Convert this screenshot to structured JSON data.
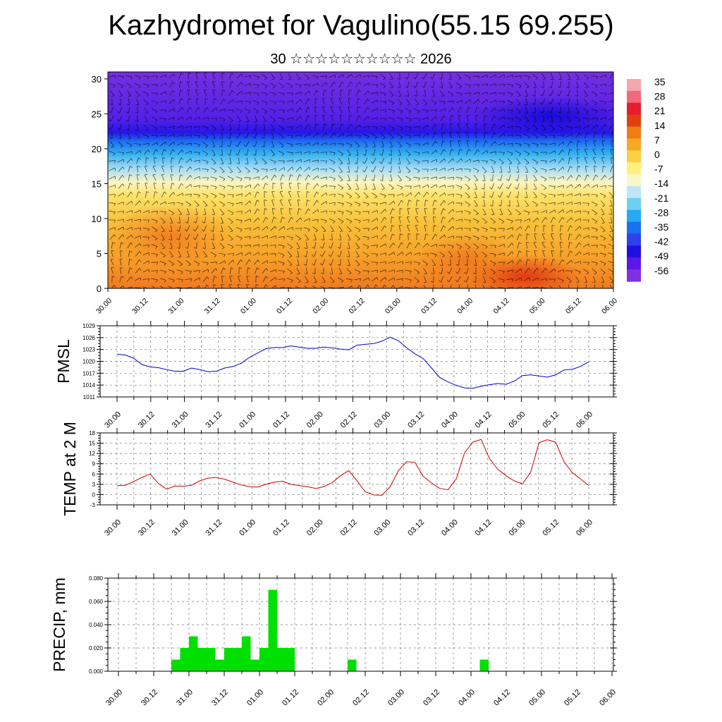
{
  "title": "Kazhydromet for Vagulino(55.15 69.255)",
  "subtitle": "30 ☆☆☆☆☆☆☆☆☆☆ 2026",
  "colors": {
    "pmsl_line": "#0000cc",
    "temp_line": "#cc0000",
    "precip_bar": "#00e000",
    "colorbar": [
      "#f2a8ae",
      "#f06a7a",
      "#e51e2e",
      "#e04010",
      "#ef7d14",
      "#f7a825",
      "#fccf45",
      "#fff080",
      "#f7f7c8",
      "#bfe6f7",
      "#6fcff2",
      "#26aaf2",
      "#1a70ee",
      "#3040e8",
      "#2010e0",
      "#5a18e8",
      "#8030e0"
    ]
  },
  "chart_data": [
    {
      "type": "heatmap",
      "title": "",
      "xlabel": "",
      "ylabel": "",
      "x_ticks": [
        "30.00",
        "30.12",
        "31.00",
        "31.12",
        "01.00",
        "01.12",
        "02.00",
        "02.12",
        "03.00",
        "03.12",
        "04.00",
        "04.12",
        "05.00",
        "05.12",
        "06.00"
      ],
      "y_ticks": [
        0,
        5,
        10,
        15,
        20,
        25,
        30
      ],
      "ylim": [
        0,
        31
      ],
      "colorbar_labels": [
        "35",
        "28",
        "21",
        "14",
        "7",
        "0",
        "-7",
        "-14",
        "-21",
        "-28",
        "-35",
        "-42",
        "-49",
        "-56"
      ],
      "overlay": "wind barbs"
    },
    {
      "type": "line",
      "ylabel": "PMSL",
      "x_ticks": [
        "30.00",
        "30.12",
        "31.00",
        "31.12",
        "01.00",
        "01.12",
        "02.00",
        "02.12",
        "03.00",
        "03.12",
        "04.00",
        "04.12",
        "05.00",
        "05.12",
        "06.00"
      ],
      "y_ticks": [
        "1011",
        "1014",
        "1017",
        "1020",
        "1023",
        "1026",
        "1029"
      ],
      "ylim": [
        1011,
        1029
      ],
      "grid": true,
      "series": [
        {
          "values": [
            1021.8,
            1021.6,
            1020.8,
            1019.2,
            1018.6,
            1018.4,
            1017.9,
            1017.5,
            1017.5,
            1018.3,
            1017.9,
            1017.4,
            1017.5,
            1018.3,
            1018.7,
            1019.5,
            1021.0,
            1022.1,
            1023.2,
            1023.5,
            1023.5,
            1023.9,
            1023.6,
            1023.3,
            1023.3,
            1023.6,
            1023.4,
            1023.1,
            1022.9,
            1024.1,
            1024.3,
            1024.5,
            1025.1,
            1026.1,
            1025.2,
            1023.4,
            1021.9,
            1020.7,
            1018.3,
            1015.9,
            1014.8,
            1013.9,
            1013.3,
            1013.2,
            1013.7,
            1014.1,
            1014.4,
            1014.2,
            1015.0,
            1016.4,
            1016.6,
            1016.3,
            1016.0,
            1016.6,
            1017.8,
            1018.0,
            1018.7,
            1019.9
          ]
        }
      ]
    },
    {
      "type": "line",
      "ylabel": "TEMP at 2 M",
      "x_ticks": [
        "30.00",
        "30.12",
        "31.00",
        "31.12",
        "01.00",
        "01.12",
        "02.00",
        "02.12",
        "03.00",
        "03.12",
        "04.00",
        "04.12",
        "05.00",
        "05.12",
        "06.00"
      ],
      "y_ticks": [
        "-3",
        "0",
        "3",
        "6",
        "9",
        "12",
        "15",
        "18"
      ],
      "ylim": [
        -3,
        18
      ],
      "grid": true,
      "series": [
        {
          "values": [
            2.6,
            2.7,
            3.8,
            5.0,
            6.0,
            3.2,
            1.6,
            2.5,
            2.4,
            2.7,
            4.0,
            4.8,
            5.0,
            4.5,
            3.6,
            2.8,
            2.3,
            2.2,
            3.0,
            3.6,
            3.9,
            3.0,
            2.6,
            2.3,
            1.8,
            2.3,
            3.5,
            5.5,
            7.0,
            4.0,
            0.8,
            -0.1,
            -0.2,
            2.3,
            7.0,
            9.6,
            9.4,
            5.3,
            3.4,
            1.8,
            1.4,
            4.6,
            12.2,
            15.3,
            16.1,
            10.5,
            7.4,
            5.5,
            4.0,
            3.1,
            6.6,
            15.2,
            16.0,
            15.3,
            9.6,
            6.4,
            4.6,
            2.6
          ]
        }
      ]
    },
    {
      "type": "bar",
      "ylabel": "PRECIP, mm",
      "x_ticks": [
        "30.00",
        "30.12",
        "31.00",
        "31.12",
        "01.00",
        "01.12",
        "02.00",
        "02.12",
        "03.00",
        "03.12",
        "04.00",
        "04.12",
        "05.00",
        "05.12",
        "06.00"
      ],
      "y_ticks": [
        "0.000",
        "0.020",
        "0.040",
        "0.060",
        "0.080"
      ],
      "ylim": [
        0,
        0.08
      ],
      "grid": true,
      "values": [
        0,
        0,
        0,
        0,
        0,
        0,
        0.01,
        0.02,
        0.03,
        0.02,
        0.02,
        0.01,
        0.02,
        0.02,
        0.03,
        0.01,
        0.02,
        0.07,
        0.02,
        0.02,
        0,
        0,
        0,
        0,
        0,
        0,
        0.01,
        0,
        0,
        0,
        0,
        0,
        0,
        0,
        0,
        0,
        0,
        0,
        0,
        0,
        0,
        0.01,
        0,
        0,
        0,
        0,
        0,
        0,
        0,
        0,
        0,
        0,
        0,
        0,
        0,
        0,
        0,
        0
      ]
    }
  ]
}
